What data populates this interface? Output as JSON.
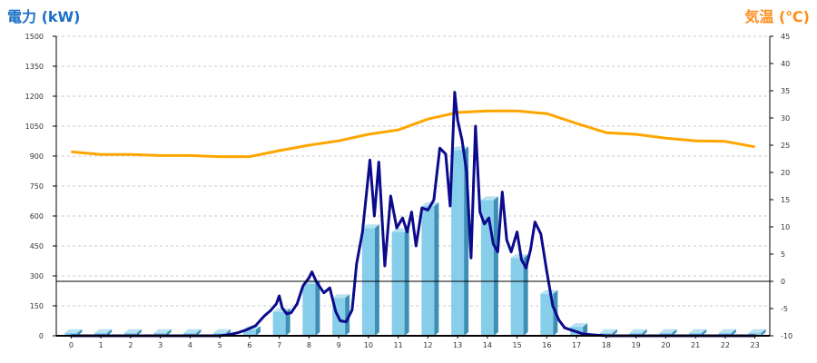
{
  "chart_data": {
    "type": "bar",
    "title_left": "電力 (kW)",
    "title_right": "気温 (℃)",
    "categories": [
      "0",
      "1",
      "2",
      "3",
      "4",
      "5",
      "6",
      "7",
      "8",
      "9",
      "10",
      "11",
      "12",
      "13",
      "14",
      "15",
      "16",
      "17",
      "18",
      "19",
      "20",
      "21",
      "22",
      "23"
    ],
    "left_axis": {
      "min": 0,
      "max": 1500,
      "ticks": [
        0,
        150,
        300,
        450,
        600,
        750,
        900,
        1050,
        1200,
        1350,
        1500
      ]
    },
    "right_axis": {
      "min": -10,
      "max": 45,
      "ticks": [
        -10,
        -5,
        0,
        5,
        10,
        15,
        20,
        25,
        30,
        35,
        40,
        45
      ]
    },
    "grid": true,
    "series": [
      {
        "kind": "bar",
        "axis": "left",
        "values": [
          15,
          15,
          15,
          15,
          15,
          15,
          30,
          120,
          260,
          190,
          540,
          520,
          650,
          930,
          680,
          390,
          210,
          45,
          15,
          15,
          15,
          15,
          15,
          15
        ]
      },
      {
        "kind": "line",
        "axis": "left",
        "x": [
          0,
          1,
          2,
          3,
          4,
          5,
          5.3,
          5.6,
          5.9,
          6.2,
          6.5,
          6.7,
          6.9,
          7.0,
          7.1,
          7.25,
          7.4,
          7.6,
          7.8,
          8.0,
          8.1,
          8.25,
          8.5,
          8.7,
          8.9,
          9.05,
          9.25,
          9.45,
          9.6,
          9.8,
          10.05,
          10.2,
          10.35,
          10.55,
          10.75,
          10.95,
          11.15,
          11.3,
          11.45,
          11.6,
          11.8,
          12.0,
          12.2,
          12.4,
          12.6,
          12.75,
          12.9,
          13.0,
          13.15,
          13.3,
          13.45,
          13.6,
          13.75,
          13.9,
          14.05,
          14.2,
          14.35,
          14.5,
          14.65,
          14.8,
          15.0,
          15.15,
          15.3,
          15.45,
          15.6,
          15.8,
          16.0,
          16.2,
          16.4,
          16.6,
          16.8,
          17.0,
          17.2,
          17.5,
          18,
          19,
          20,
          21,
          22,
          23
        ],
        "values": [
          0,
          0,
          0,
          0,
          0,
          0,
          5,
          15,
          30,
          50,
          100,
          125,
          160,
          200,
          140,
          110,
          115,
          160,
          250,
          290,
          320,
          270,
          215,
          240,
          120,
          75,
          70,
          130,
          360,
          520,
          880,
          600,
          870,
          350,
          700,
          540,
          590,
          520,
          620,
          450,
          640,
          630,
          680,
          940,
          910,
          650,
          1220,
          1080,
          980,
          820,
          390,
          1050,
          620,
          560,
          590,
          460,
          420,
          720,
          480,
          420,
          520,
          380,
          340,
          430,
          570,
          510,
          320,
          150,
          80,
          40,
          30,
          20,
          10,
          5,
          0,
          0,
          0,
          0,
          0,
          0
        ]
      },
      {
        "kind": "line",
        "axis": "right",
        "x": [
          0,
          1,
          2,
          3,
          4,
          5,
          6,
          7,
          8,
          9,
          10,
          11,
          12,
          13,
          14,
          15,
          16,
          17,
          18,
          19,
          20,
          21,
          22,
          23
        ],
        "values": [
          23.8,
          23.3,
          23.3,
          23.1,
          23.1,
          22.9,
          22.9,
          24.0,
          25.0,
          25.8,
          27.0,
          27.8,
          29.8,
          31.0,
          31.3,
          31.3,
          30.8,
          29.0,
          27.3,
          27.0,
          26.3,
          25.8,
          25.7,
          24.7
        ]
      }
    ],
    "colors": {
      "title_left": "#1a6fc4",
      "title_right": "#ff8c1a",
      "bar_face": "#87ceeb",
      "bar_side": "#3d8fb5",
      "bar_top": "#b8e2f2",
      "demand_line": "#0b0b8c",
      "temp_line": "#ffa500",
      "grid": "#c8c8c8",
      "axis": "#000000"
    }
  }
}
